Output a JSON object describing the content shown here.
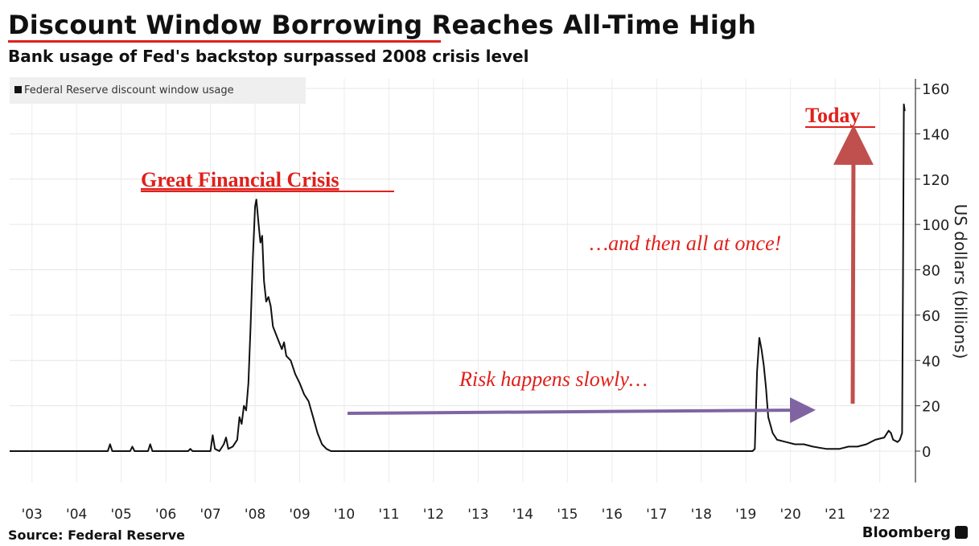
{
  "header": {
    "title": "Discount Window Borrowing Reaches All-Time High",
    "subtitle": "Bank usage of Fed's backstop surpassed 2008 crisis level"
  },
  "footer": {
    "source": "Source: Federal Reserve",
    "brand": "Bloomberg"
  },
  "colors": {
    "series": "#111111",
    "annotation_red": "#e0201b",
    "arrow_red": "#c0504d",
    "arrow_purple": "#8064a2",
    "grid": "#e6e6e6",
    "legend_bg": "#efefef"
  },
  "annotations": {
    "crisis": "Great Financial Crisis",
    "today": "Today",
    "slow": "Risk happens slowly…",
    "sudden": "…and then all at once!"
  },
  "chart_data": {
    "type": "line",
    "ylabel": "US dollars (billions)",
    "ylim": [
      -15,
      165
    ],
    "yticks": [
      0,
      20,
      40,
      60,
      80,
      100,
      120,
      140,
      160
    ],
    "xlim": [
      2003.2,
      2023.5
    ],
    "xticks": [
      {
        "label": "'03",
        "value": 2003.7
      },
      {
        "label": "'04",
        "value": 2004.7
      },
      {
        "label": "'05",
        "value": 2005.7
      },
      {
        "label": "'06",
        "value": 2006.7
      },
      {
        "label": "'07",
        "value": 2007.7
      },
      {
        "label": "'08",
        "value": 2008.7
      },
      {
        "label": "'09",
        "value": 2009.7
      },
      {
        "label": "'10",
        "value": 2010.7
      },
      {
        "label": "'11",
        "value": 2011.7
      },
      {
        "label": "'12",
        "value": 2012.7
      },
      {
        "label": "'13",
        "value": 2013.7
      },
      {
        "label": "'14",
        "value": 2014.7
      },
      {
        "label": "'15",
        "value": 2015.7
      },
      {
        "label": "'16",
        "value": 2016.7
      },
      {
        "label": "'17",
        "value": 2017.7
      },
      {
        "label": "'18",
        "value": 2018.7
      },
      {
        "label": "'19",
        "value": 2019.7
      },
      {
        "label": "'20",
        "value": 2020.7
      },
      {
        "label": "'21",
        "value": 2021.7
      },
      {
        "label": "'22",
        "value": 2022.7
      }
    ],
    "grid": true,
    "legend": "top-left",
    "series": [
      {
        "name": "Federal Reserve discount window usage",
        "points": [
          [
            2003.2,
            0
          ],
          [
            2005.4,
            0
          ],
          [
            2005.45,
            3
          ],
          [
            2005.5,
            0
          ],
          [
            2005.9,
            0
          ],
          [
            2005.95,
            2
          ],
          [
            2006.0,
            0
          ],
          [
            2006.3,
            0
          ],
          [
            2006.35,
            3
          ],
          [
            2006.4,
            0
          ],
          [
            2007.2,
            0
          ],
          [
            2007.25,
            1
          ],
          [
            2007.3,
            0
          ],
          [
            2007.7,
            0
          ],
          [
            2007.75,
            7
          ],
          [
            2007.8,
            1
          ],
          [
            2007.9,
            0
          ],
          [
            2008.0,
            3
          ],
          [
            2008.05,
            6
          ],
          [
            2008.1,
            1
          ],
          [
            2008.2,
            2
          ],
          [
            2008.3,
            5
          ],
          [
            2008.35,
            15
          ],
          [
            2008.4,
            12
          ],
          [
            2008.45,
            20
          ],
          [
            2008.5,
            18
          ],
          [
            2008.55,
            30
          ],
          [
            2008.6,
            55
          ],
          [
            2008.65,
            85
          ],
          [
            2008.7,
            108
          ],
          [
            2008.73,
            111
          ],
          [
            2008.78,
            100
          ],
          [
            2008.82,
            92
          ],
          [
            2008.86,
            95
          ],
          [
            2008.9,
            75
          ],
          [
            2008.95,
            66
          ],
          [
            2009.0,
            68
          ],
          [
            2009.05,
            64
          ],
          [
            2009.1,
            55
          ],
          [
            2009.2,
            50
          ],
          [
            2009.3,
            45
          ],
          [
            2009.35,
            48
          ],
          [
            2009.4,
            42
          ],
          [
            2009.5,
            40
          ],
          [
            2009.6,
            34
          ],
          [
            2009.7,
            30
          ],
          [
            2009.8,
            25
          ],
          [
            2009.9,
            22
          ],
          [
            2010.0,
            15
          ],
          [
            2010.1,
            8
          ],
          [
            2010.2,
            3
          ],
          [
            2010.3,
            1
          ],
          [
            2010.4,
            0
          ],
          [
            2019.85,
            0
          ],
          [
            2019.9,
            1
          ],
          [
            2019.95,
            35
          ],
          [
            2020.0,
            50
          ],
          [
            2020.05,
            45
          ],
          [
            2020.1,
            38
          ],
          [
            2020.15,
            28
          ],
          [
            2020.2,
            15
          ],
          [
            2020.3,
            8
          ],
          [
            2020.4,
            5
          ],
          [
            2020.6,
            4
          ],
          [
            2020.8,
            3
          ],
          [
            2021.0,
            3
          ],
          [
            2021.2,
            2
          ],
          [
            2021.5,
            1
          ],
          [
            2021.8,
            1
          ],
          [
            2022.0,
            2
          ],
          [
            2022.2,
            2
          ],
          [
            2022.4,
            3
          ],
          [
            2022.6,
            5
          ],
          [
            2022.8,
            6
          ],
          [
            2022.9,
            9
          ],
          [
            2022.95,
            8
          ],
          [
            2023.0,
            5
          ],
          [
            2023.1,
            4
          ],
          [
            2023.15,
            5
          ],
          [
            2023.2,
            8
          ],
          [
            2023.22,
            75
          ],
          [
            2023.24,
            153
          ],
          [
            2023.26,
            150
          ]
        ]
      }
    ]
  }
}
